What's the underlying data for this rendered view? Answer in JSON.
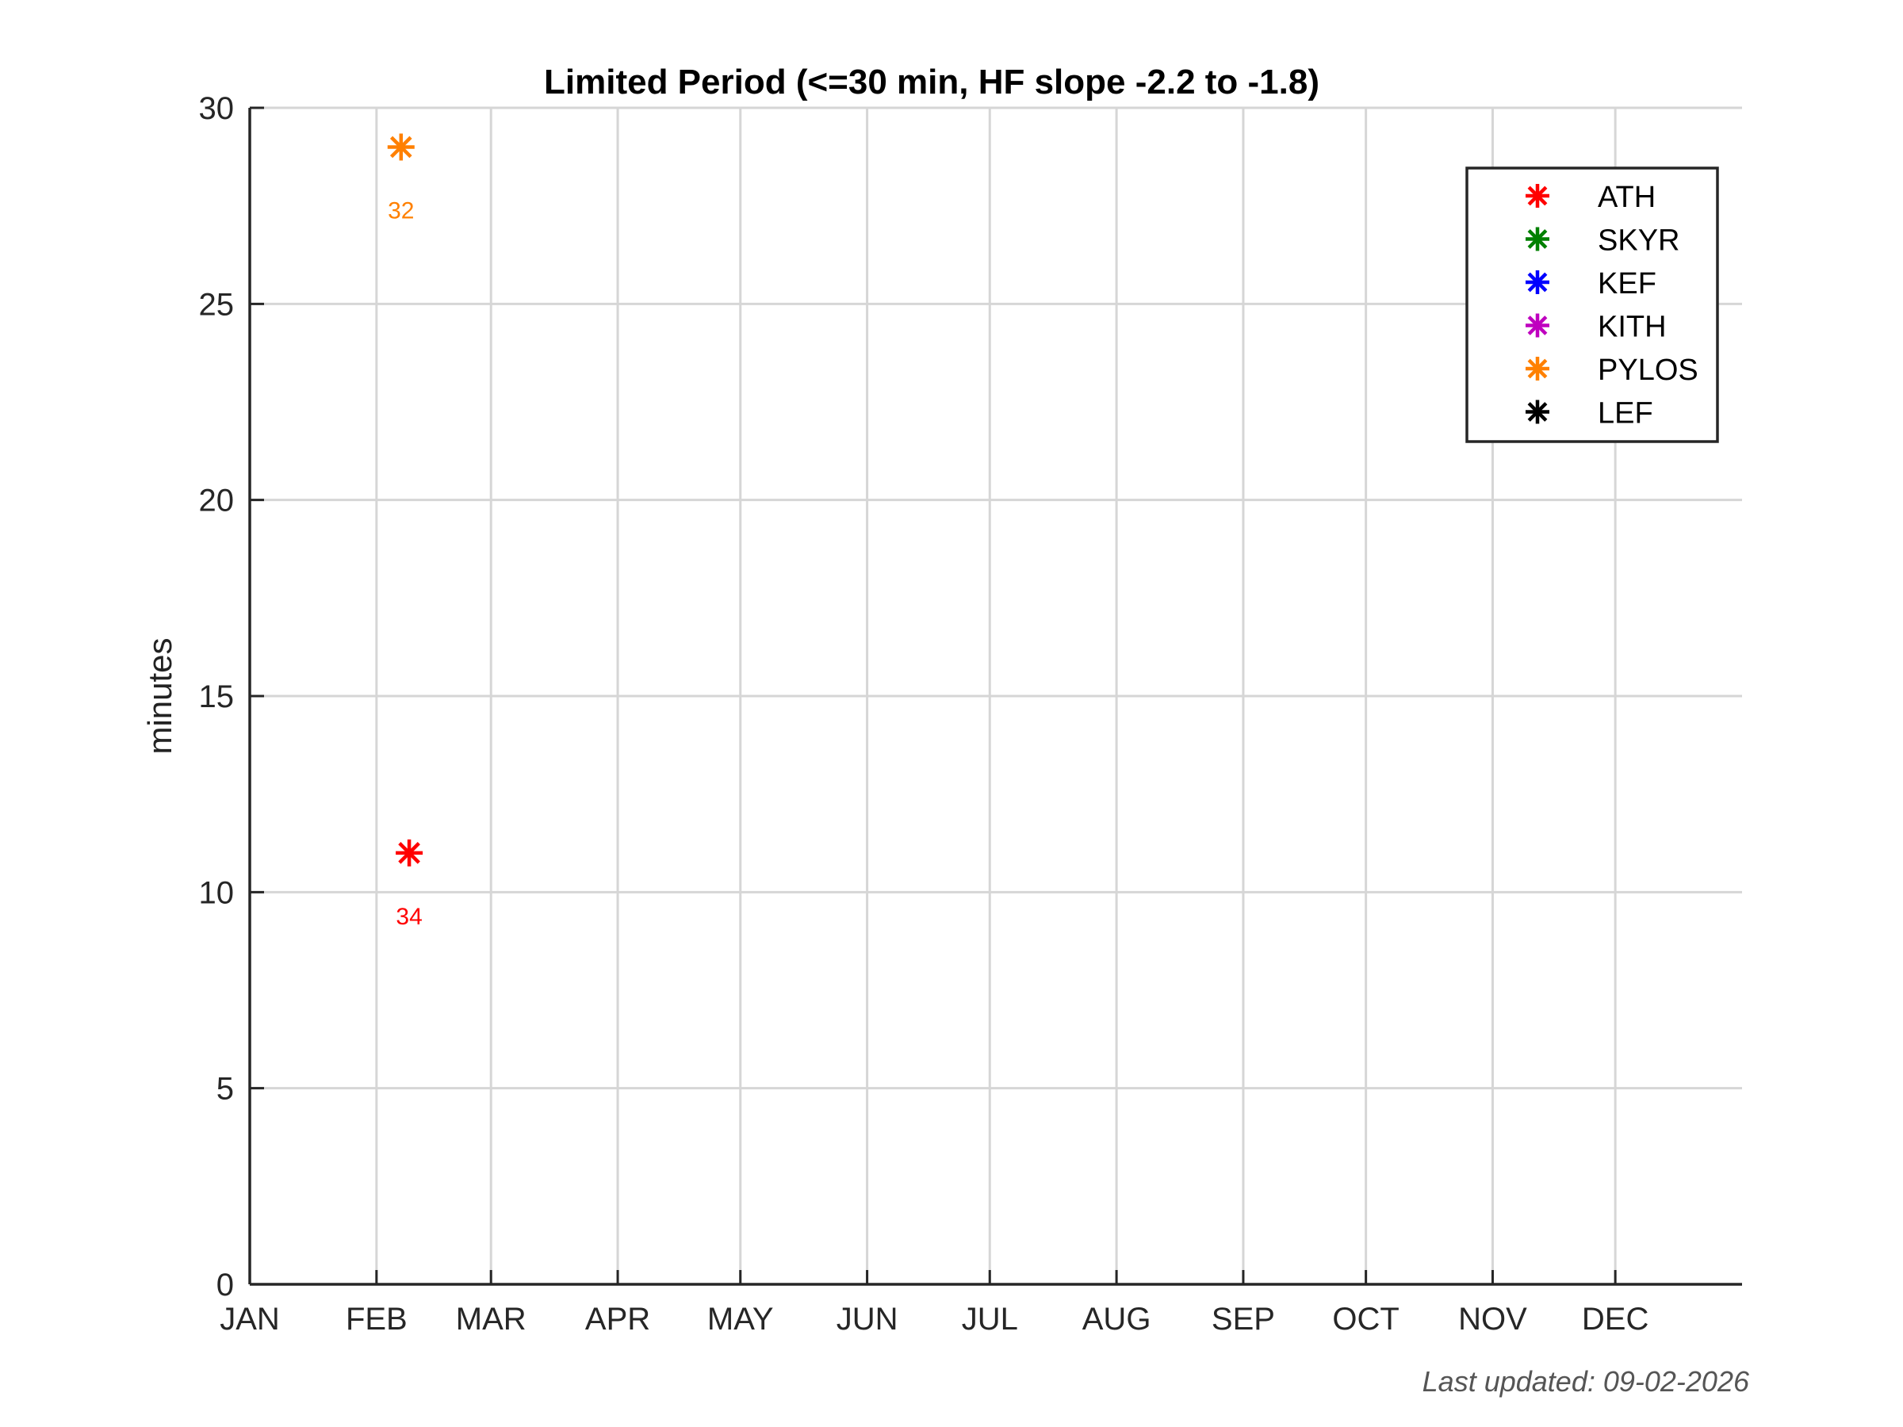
{
  "chart_data": {
    "type": "scatter",
    "title": "Limited Period (<=30 min, HF slope -2.2 to -1.8)",
    "xlabel": "",
    "ylabel": "minutes",
    "x_categories": [
      "JAN",
      "FEB",
      "MAR",
      "APR",
      "MAY",
      "JUN",
      "JUL",
      "AUG",
      "SEP",
      "OCT",
      "NOV",
      "DEC"
    ],
    "x_tick_days": [
      0,
      31,
      59,
      90,
      120,
      151,
      181,
      212,
      243,
      273,
      304,
      334
    ],
    "xlim_days": [
      0,
      365
    ],
    "ylim": [
      0,
      30
    ],
    "y_ticks": [
      0,
      5,
      10,
      15,
      20,
      25,
      30
    ],
    "grid": true,
    "legend_position": "top-right",
    "marker": "asterisk",
    "series": [
      {
        "name": "ATH",
        "color": "#ff0000",
        "points": [
          {
            "x": "02-09",
            "y": 11,
            "label": "34"
          }
        ]
      },
      {
        "name": "SKYR",
        "color": "#008000",
        "points": []
      },
      {
        "name": "KEF",
        "color": "#0000ff",
        "points": []
      },
      {
        "name": "KITH",
        "color": "#bf00bf",
        "points": []
      },
      {
        "name": "PYLOS",
        "color": "#ff8000",
        "points": [
          {
            "x": "02-07",
            "y": 29,
            "label": "32"
          }
        ]
      },
      {
        "name": "LEF",
        "color": "#000000",
        "points": []
      }
    ]
  },
  "footer": {
    "last_updated": "Last updated: 09-02-2026"
  }
}
